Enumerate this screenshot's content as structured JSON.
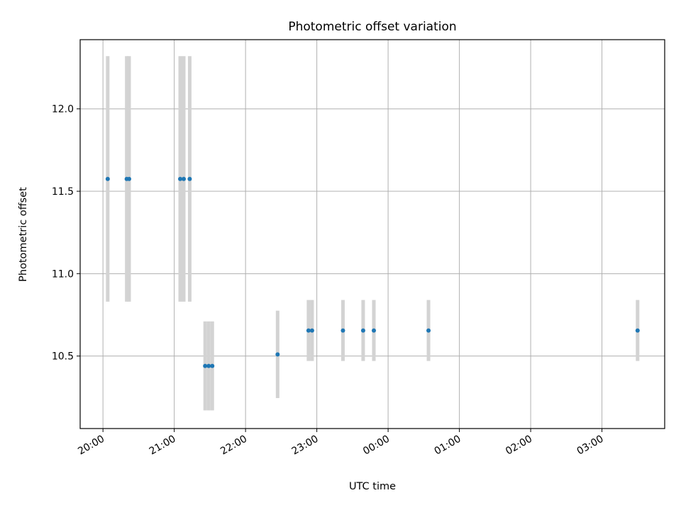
{
  "chart_data": {
    "type": "scatter",
    "title": "Photometric offset variation",
    "xlabel": "UTC time",
    "ylabel": "Photometric offset",
    "x_tick_labels": [
      "20:00",
      "21:00",
      "22:00",
      "23:00",
      "00:00",
      "01:00",
      "02:00",
      "03:00"
    ],
    "x_tick_hours": [
      20,
      21,
      22,
      23,
      24,
      25,
      26,
      27
    ],
    "y_tick_labels": [
      "10.5",
      "11.0",
      "11.5",
      "12.0"
    ],
    "y_ticks": [
      10.5,
      11.0,
      11.5,
      12.0
    ],
    "xlim_hours": [
      19.68,
      27.88
    ],
    "ylim": [
      10.06,
      12.42
    ],
    "grid": true,
    "colors": {
      "point": "#1f77b4",
      "errorbar": "#d3d3d3",
      "grid": "#b0b0b0",
      "axes": "#000000"
    },
    "points": [
      {
        "t": "20:04",
        "y": 11.575,
        "yerr": 0.745
      },
      {
        "t": "20:20",
        "y": 11.575,
        "yerr": 0.745
      },
      {
        "t": "20:22",
        "y": 11.575,
        "yerr": 0.745
      },
      {
        "t": "21:05",
        "y": 11.575,
        "yerr": 0.745
      },
      {
        "t": "21:08",
        "y": 11.575,
        "yerr": 0.745
      },
      {
        "t": "21:13",
        "y": 11.575,
        "yerr": 0.745
      },
      {
        "t": "21:26",
        "y": 10.44,
        "yerr": 0.27
      },
      {
        "t": "21:29",
        "y": 10.44,
        "yerr": 0.27
      },
      {
        "t": "21:32",
        "y": 10.44,
        "yerr": 0.27
      },
      {
        "t": "22:27",
        "y": 10.51,
        "yerr": 0.265
      },
      {
        "t": "22:53",
        "y": 10.655,
        "yerr": 0.185
      },
      {
        "t": "22:56",
        "y": 10.655,
        "yerr": 0.185
      },
      {
        "t": "23:22",
        "y": 10.655,
        "yerr": 0.185
      },
      {
        "t": "23:39",
        "y": 10.655,
        "yerr": 0.185
      },
      {
        "t": "23:48",
        "y": 10.655,
        "yerr": 0.185
      },
      {
        "t": "00:34",
        "y": 10.655,
        "yerr": 0.185
      },
      {
        "t": "03:30",
        "y": 10.655,
        "yerr": 0.185
      }
    ]
  }
}
